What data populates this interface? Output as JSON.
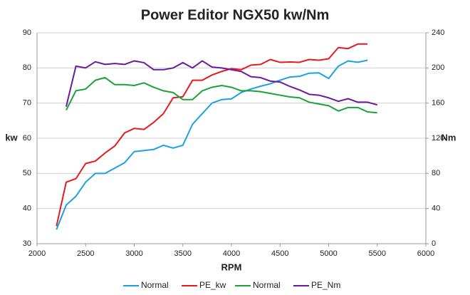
{
  "chart_data": {
    "type": "line",
    "title": "Power Editor NGX50 kw/Nm",
    "x_label": "RPM",
    "y_label": "kw",
    "y2_label": "Nm",
    "xlim": [
      2000,
      6000
    ],
    "xticks": [
      2000,
      2500,
      3000,
      3500,
      4000,
      4500,
      5000,
      5500,
      6000
    ],
    "ylim": [
      30,
      90
    ],
    "yticks": [
      30,
      40,
      50,
      60,
      70,
      80,
      90
    ],
    "y2lim": [
      0,
      240
    ],
    "y2ticks": [
      0,
      40,
      80,
      120,
      160,
      200,
      240
    ],
    "grid": true,
    "legend": "bottom",
    "series": [
      {
        "name": "Normal",
        "color": "#1ba1e2",
        "x": [
          2200,
          2300,
          2400,
          2500,
          2600,
          2700,
          2800,
          2900,
          3000,
          3100,
          3200,
          3300,
          3400,
          3500,
          3600,
          3700,
          3800,
          3900,
          4000,
          4100,
          4200,
          4300,
          4400,
          4500,
          4600,
          4700,
          4800,
          4900,
          5000,
          5100,
          5200,
          5300,
          5400
        ],
        "values": [
          34,
          41,
          43.5,
          47.5,
          50,
          50,
          51.5,
          53,
          56.2,
          56.5,
          56.8,
          58,
          57.2,
          58,
          64,
          67,
          70,
          71,
          71.2,
          73,
          74,
          74.8,
          75.5,
          76.5,
          77.4,
          77.6,
          78.5,
          78.6,
          77,
          80.5,
          82,
          81.6,
          82.2
        ]
      },
      {
        "name": "PE_kw",
        "color": "#e8191d",
        "x": [
          2200,
          2300,
          2400,
          2500,
          2600,
          2700,
          2800,
          2900,
          3000,
          3100,
          3200,
          3300,
          3400,
          3500,
          3600,
          3700,
          3800,
          3900,
          4000,
          4100,
          4200,
          4300,
          4400,
          4500,
          4600,
          4700,
          4800,
          4900,
          5000,
          5100,
          5200,
          5300,
          5400
        ],
        "values": [
          35,
          47.5,
          48.5,
          52.8,
          53.5,
          55.8,
          57.8,
          61.5,
          62.8,
          62.5,
          64.5,
          67,
          71.5,
          71.8,
          76.5,
          76.5,
          78,
          79,
          79.8,
          79.5,
          80.8,
          81,
          82.4,
          81.6,
          81.7,
          81.6,
          82.4,
          82.2,
          82.6,
          85.8,
          85.5,
          86.8,
          86.8
        ]
      },
      {
        "name": "Normal",
        "color": "#1aa23a",
        "axis": "y2",
        "x": [
          2300,
          2400,
          2500,
          2600,
          2700,
          2800,
          2900,
          3000,
          3100,
          3200,
          3300,
          3400,
          3500,
          3600,
          3700,
          3800,
          3900,
          4000,
          4100,
          4200,
          4300,
          4400,
          4500,
          4600,
          4700,
          4800,
          4900,
          5000,
          5100,
          5200,
          5300,
          5400,
          5500
        ],
        "values": [
          152,
          174,
          176,
          186,
          189,
          181,
          181,
          180,
          183,
          178,
          174,
          172,
          164,
          164,
          174,
          178,
          180,
          178,
          174,
          174,
          173,
          171,
          169,
          167,
          166,
          161,
          159,
          157,
          151,
          155,
          155,
          150,
          149
        ]
      },
      {
        "name": "PE_Nm",
        "color": "#6a1a9a",
        "axis": "y2",
        "x": [
          2300,
          2400,
          2500,
          2600,
          2700,
          2800,
          2900,
          3000,
          3100,
          3200,
          3300,
          3400,
          3500,
          3600,
          3700,
          3800,
          3900,
          4000,
          4100,
          4200,
          4300,
          4400,
          4500,
          4600,
          4700,
          4800,
          4900,
          5000,
          5100,
          5200,
          5300,
          5400,
          5500
        ],
        "values": [
          156,
          202,
          200,
          207,
          204,
          205,
          204,
          208,
          206,
          198,
          198,
          200,
          206,
          200,
          208,
          201,
          200,
          198,
          196,
          190,
          189,
          185,
          184,
          179,
          175,
          170,
          169,
          166,
          162,
          165,
          161,
          161,
          158
        ]
      }
    ]
  }
}
